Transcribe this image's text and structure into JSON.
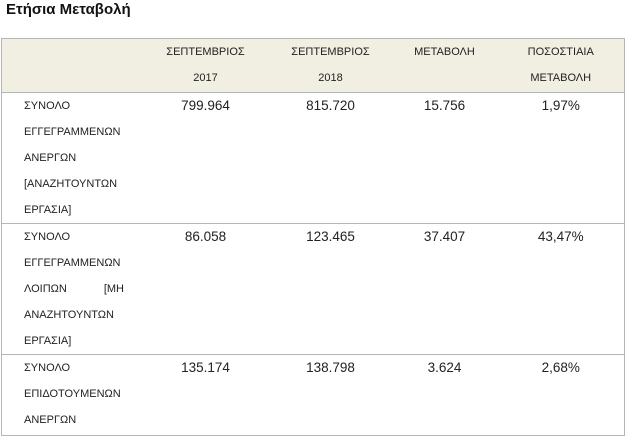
{
  "title": "Ετήσια Μεταβολή",
  "table": {
    "headers": [
      "",
      "ΣΕΠΤΕΜΒΡΙΟΣ 2017",
      "ΣΕΠΤΕΜΒΡΙΟΣ 2018",
      "ΜΕΤΑΒΟΛΗ",
      "ΠΟΣΟΣΤΙΑΙΑ ΜΕΤΑΒΟΛΗ"
    ],
    "rows": [
      [
        "ΣΥΝΟΛΟ ΕΓΓΕΓΡΑΜΜΕΝΩΝ ΑΝΕΡΓΩΝ [ΑΝΑΖΗΤΟΥΝΤΩΝ ΕΡΓΑΣΙΑ]",
        "799.964",
        "815.720",
        "15.756",
        "1,97%"
      ],
      [
        "ΣΥΝΟΛΟ ΕΓΓΕΓΡΑΜΜΕΝΩΝ ΛΟΙΠΩΝ [ΜΗ ΑΝΑΖΗΤΟΥΝΤΩΝ ΕΡΓΑΣΙΑ]",
        "86.058",
        "123.465",
        "37.407",
        "43,47%"
      ],
      [
        "ΣΥΝΟΛΟ ΕΠΙΔΟΤΟΥΜΕΝΩΝ ΑΝΕΡΓΩΝ",
        "135.174",
        "138.798",
        "3.624",
        "2,68%"
      ]
    ]
  }
}
